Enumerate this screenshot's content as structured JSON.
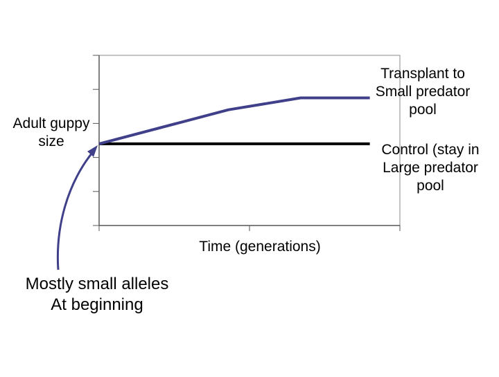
{
  "chart_data": {
    "type": "line",
    "title": "",
    "xlabel": "Time (generations)",
    "ylabel": "Adult guppy size",
    "x_ticks": 3,
    "y_ticks": 6,
    "series": [
      {
        "name": "Transplant to Small predator pool",
        "color": "#3f3f8a",
        "x": [
          0,
          0.43,
          0.67,
          0.9
        ],
        "y": [
          0.48,
          0.68,
          0.75,
          0.75
        ]
      },
      {
        "name": "Control (stay in Large predator pool",
        "color": "#000000",
        "x": [
          0,
          0.9
        ],
        "y": [
          0.48,
          0.48
        ]
      }
    ]
  },
  "labels": {
    "y_axis": [
      "Adult guppy",
      "size"
    ],
    "x_axis": "Time (generations)",
    "transplant": [
      "Transplant to",
      "Small predator",
      "pool"
    ],
    "control": [
      "Control (stay in",
      "Large predator",
      "pool"
    ],
    "annotation": [
      "Mostly small alleles",
      "At beginning"
    ]
  },
  "colors": {
    "annotation_arrow": "#3f3f8a",
    "frame": "#888888",
    "axis": "#555555"
  }
}
